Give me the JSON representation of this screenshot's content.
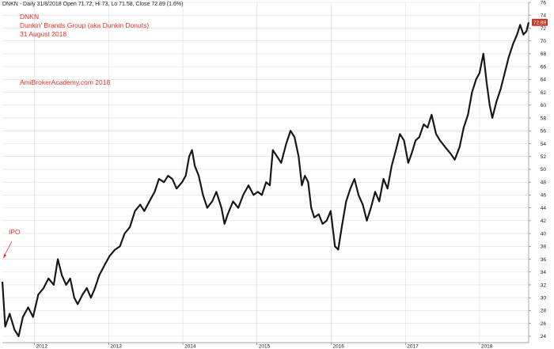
{
  "header": {
    "info_line": "DNKN - Daily 31/8/2018 Open 71.72, Hi 73, Lo 71.58, Close 72.89 (1.6%)"
  },
  "annotations": {
    "ticker": "DNKN",
    "company": "Dunkin' Brands Group (aka Dunkin Donuts)",
    "date": "31 August 2018",
    "source": "AmiBrokerAcademy.com  2018",
    "ipo_label": "IPO"
  },
  "last_price_label": "72.89",
  "colors": {
    "price": "#111111",
    "grid": "#dcdcdc",
    "annotation": "#e8302a",
    "last_price_badge": "#c0392b"
  },
  "chart_data": {
    "type": "line",
    "title": "DNKN - Daily 31/8/2018 Open 71.72, Hi 73, Lo 71.58, Close 72.89 (1.6%)",
    "xlabel": "",
    "ylabel": "",
    "y_axis_position": "right",
    "grid": true,
    "ylim": [
      23,
      76
    ],
    "xlim": [
      "2011-07-27",
      "2018-08-31"
    ],
    "yticks": [
      24,
      26,
      28,
      30,
      32,
      34,
      36,
      38,
      40,
      42,
      44,
      46,
      48,
      50,
      52,
      54,
      56,
      58,
      60,
      62,
      64,
      66,
      68,
      70,
      72,
      74,
      76
    ],
    "xticks": [
      {
        "label": "2012",
        "x": "2012-01-01"
      },
      {
        "label": "2013",
        "x": "2013-01-01"
      },
      {
        "label": "2014",
        "x": "2014-01-01"
      },
      {
        "label": "2015",
        "x": "2015-01-01"
      },
      {
        "label": "2016",
        "x": "2016-01-01"
      },
      {
        "label": "2017",
        "x": "2017-01-01"
      },
      {
        "label": "2018",
        "x": "2018-01-01"
      }
    ],
    "series": [
      {
        "name": "",
        "points": [
          [
            "2011-07-27",
            32.5
          ],
          [
            "2011-08-10",
            25.5
          ],
          [
            "2011-09-01",
            27.5
          ],
          [
            "2011-09-25",
            25.0
          ],
          [
            "2011-10-15",
            24.0
          ],
          [
            "2011-11-05",
            27.0
          ],
          [
            "2011-12-01",
            28.5
          ],
          [
            "2011-12-25",
            27.0
          ],
          [
            "2012-01-20",
            30.5
          ],
          [
            "2012-02-15",
            31.5
          ],
          [
            "2012-03-10",
            33.0
          ],
          [
            "2012-04-05",
            32.0
          ],
          [
            "2012-04-25",
            36.0
          ],
          [
            "2012-05-15",
            33.5
          ],
          [
            "2012-06-05",
            32.0
          ],
          [
            "2012-06-25",
            33.0
          ],
          [
            "2012-07-15",
            30.0
          ],
          [
            "2012-08-01",
            29.0
          ],
          [
            "2012-08-25",
            30.5
          ],
          [
            "2012-09-15",
            31.5
          ],
          [
            "2012-10-05",
            30.0
          ],
          [
            "2012-10-25",
            31.5
          ],
          [
            "2012-11-15",
            33.5
          ],
          [
            "2012-12-10",
            35.0
          ],
          [
            "2013-01-05",
            36.5
          ],
          [
            "2013-02-01",
            37.5
          ],
          [
            "2013-02-25",
            38.0
          ],
          [
            "2013-03-20",
            40.0
          ],
          [
            "2013-04-15",
            41.0
          ],
          [
            "2013-05-10",
            43.5
          ],
          [
            "2013-06-05",
            44.5
          ],
          [
            "2013-06-25",
            43.5
          ],
          [
            "2013-07-20",
            45.0
          ],
          [
            "2013-08-15",
            46.5
          ],
          [
            "2013-09-05",
            48.5
          ],
          [
            "2013-09-30",
            48.0
          ],
          [
            "2013-10-20",
            49.0
          ],
          [
            "2013-11-10",
            48.5
          ],
          [
            "2013-12-01",
            47.0
          ],
          [
            "2013-12-28",
            48.0
          ],
          [
            "2014-01-15",
            49.0
          ],
          [
            "2014-02-01",
            52.0
          ],
          [
            "2014-02-15",
            53.0
          ],
          [
            "2014-03-01",
            50.5
          ],
          [
            "2014-03-20",
            49.0
          ],
          [
            "2014-04-10",
            46.0
          ],
          [
            "2014-05-01",
            44.0
          ],
          [
            "2014-05-25",
            45.0
          ],
          [
            "2014-06-15",
            46.5
          ],
          [
            "2014-07-10",
            44.0
          ],
          [
            "2014-07-25",
            41.5
          ],
          [
            "2014-08-10",
            43.0
          ],
          [
            "2014-09-05",
            45.0
          ],
          [
            "2014-10-01",
            44.0
          ],
          [
            "2014-10-25",
            46.0
          ],
          [
            "2014-11-20",
            47.5
          ],
          [
            "2014-12-15",
            46.0
          ],
          [
            "2015-01-05",
            46.5
          ],
          [
            "2015-01-25",
            46.0
          ],
          [
            "2015-02-15",
            48.0
          ],
          [
            "2015-03-05",
            47.5
          ],
          [
            "2015-03-20",
            53.0
          ],
          [
            "2015-04-10",
            52.0
          ],
          [
            "2015-04-30",
            51.0
          ],
          [
            "2015-05-25",
            54.0
          ],
          [
            "2015-06-15",
            56.0
          ],
          [
            "2015-07-05",
            55.0
          ],
          [
            "2015-07-25",
            52.0
          ],
          [
            "2015-08-10",
            47.5
          ],
          [
            "2015-08-25",
            49.0
          ],
          [
            "2015-09-10",
            48.0
          ],
          [
            "2015-09-25",
            44.0
          ],
          [
            "2015-10-10",
            42.5
          ],
          [
            "2015-11-01",
            43.0
          ],
          [
            "2015-11-20",
            41.5
          ],
          [
            "2015-12-10",
            42.0
          ],
          [
            "2015-12-30",
            43.5
          ],
          [
            "2016-01-20",
            38.0
          ],
          [
            "2016-02-05",
            37.5
          ],
          [
            "2016-02-25",
            41.5
          ],
          [
            "2016-03-15",
            45.0
          ],
          [
            "2016-04-05",
            47.0
          ],
          [
            "2016-04-25",
            48.5
          ],
          [
            "2016-05-15",
            46.0
          ],
          [
            "2016-06-05",
            44.5
          ],
          [
            "2016-06-25",
            42.0
          ],
          [
            "2016-07-15",
            44.0
          ],
          [
            "2016-08-05",
            46.5
          ],
          [
            "2016-08-25",
            45.0
          ],
          [
            "2016-09-15",
            48.5
          ],
          [
            "2016-10-05",
            47.0
          ],
          [
            "2016-10-25",
            50.5
          ],
          [
            "2016-11-15",
            53.0
          ],
          [
            "2016-12-05",
            55.5
          ],
          [
            "2016-12-25",
            54.5
          ],
          [
            "2017-01-15",
            51.0
          ],
          [
            "2017-02-01",
            52.5
          ],
          [
            "2017-02-20",
            54.5
          ],
          [
            "2017-03-10",
            55.0
          ],
          [
            "2017-04-01",
            57.0
          ],
          [
            "2017-04-20",
            56.5
          ],
          [
            "2017-05-10",
            58.5
          ],
          [
            "2017-06-01",
            55.5
          ],
          [
            "2017-06-20",
            54.5
          ],
          [
            "2017-07-15",
            53.5
          ],
          [
            "2017-08-10",
            52.5
          ],
          [
            "2017-09-01",
            51.5
          ],
          [
            "2017-09-25",
            53.5
          ],
          [
            "2017-10-15",
            56.5
          ],
          [
            "2017-11-05",
            58.5
          ],
          [
            "2017-11-25",
            62.0
          ],
          [
            "2017-12-15",
            64.0
          ],
          [
            "2018-01-01",
            65.0
          ],
          [
            "2018-01-20",
            68.0
          ],
          [
            "2018-02-05",
            63.5
          ],
          [
            "2018-02-20",
            60.0
          ],
          [
            "2018-03-05",
            58.0
          ],
          [
            "2018-03-25",
            60.5
          ],
          [
            "2018-04-15",
            62.5
          ],
          [
            "2018-05-05",
            65.0
          ],
          [
            "2018-05-25",
            67.5
          ],
          [
            "2018-06-15",
            69.5
          ],
          [
            "2018-07-05",
            71.0
          ],
          [
            "2018-07-20",
            72.5
          ],
          [
            "2018-08-05",
            71.0
          ],
          [
            "2018-08-20",
            71.5
          ],
          [
            "2018-08-31",
            72.89
          ]
        ]
      }
    ]
  }
}
